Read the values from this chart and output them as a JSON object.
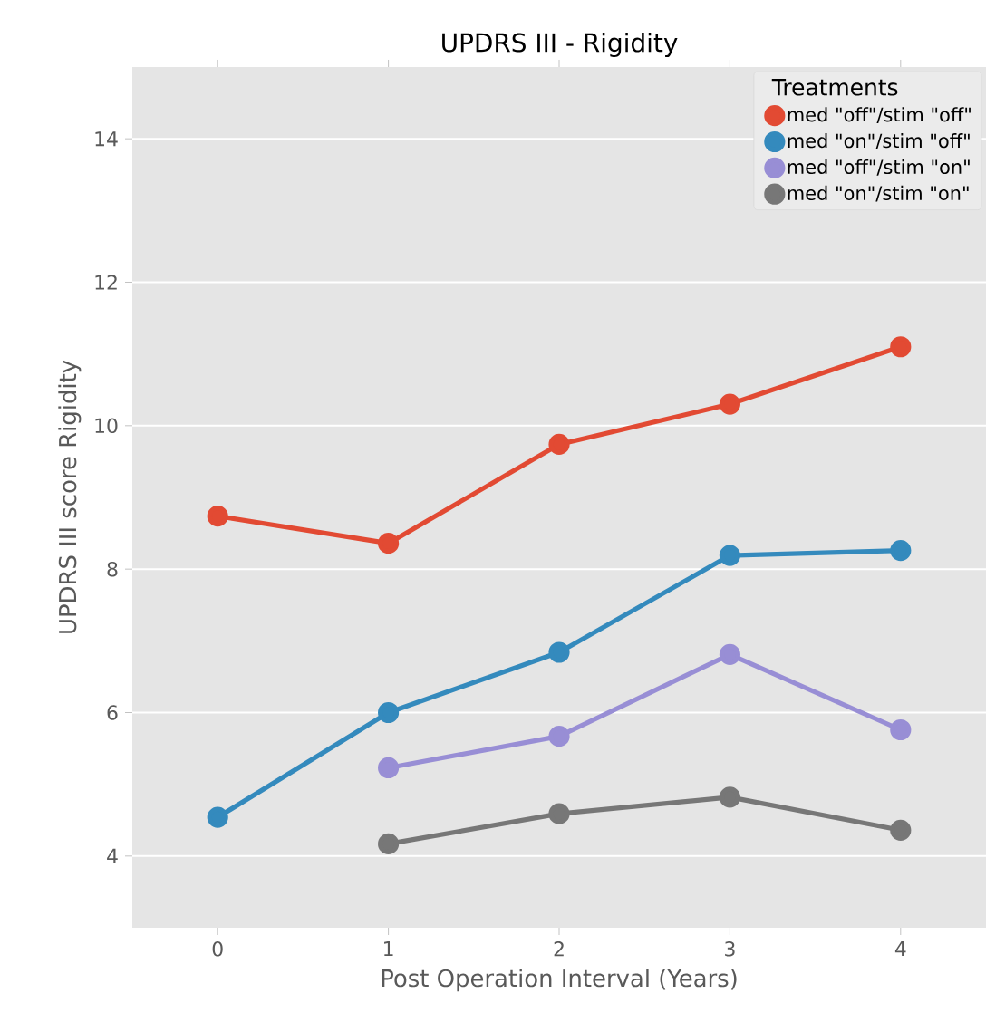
{
  "chart_data": {
    "type": "line",
    "title": "UPDRS III - Rigidity",
    "xlabel": "Post Operation Interval (Years)",
    "ylabel": "UPDRS III score Rigidity",
    "legend_title": "Treatments",
    "categories": [
      "0",
      "1",
      "2",
      "3",
      "4"
    ],
    "series": [
      {
        "name": "med \"off\"/stim \"off\"",
        "color": "#e24a33",
        "values": [
          8.74,
          8.36,
          9.74,
          10.3,
          11.1
        ]
      },
      {
        "name": "med \"on\"/stim \"off\"",
        "color": "#348abd",
        "values": [
          4.54,
          6.0,
          6.84,
          8.19,
          8.26
        ]
      },
      {
        "name": "med \"off\"/stim \"on\"",
        "color": "#988ed5",
        "values": [
          null,
          5.23,
          5.67,
          6.81,
          5.76
        ]
      },
      {
        "name": "med \"on\"/stim \"on\"",
        "color": "#777777",
        "values": [
          null,
          4.17,
          4.59,
          4.82,
          4.36
        ]
      }
    ],
    "ylim": [
      3,
      15
    ],
    "yticks": [
      4,
      6,
      8,
      10,
      12,
      14
    ],
    "grid": "y",
    "legend": "top right",
    "marker": "circle",
    "line_style": "solid"
  }
}
